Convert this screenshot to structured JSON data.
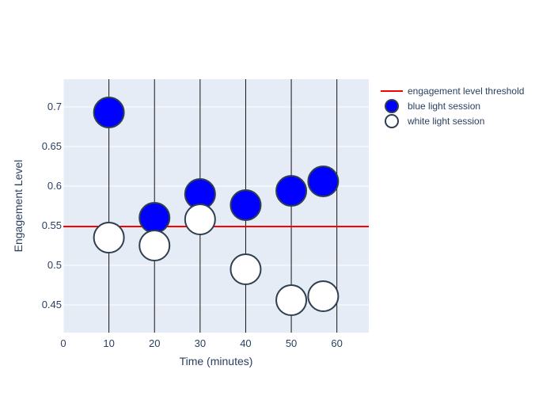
{
  "chart_data": {
    "type": "scatter",
    "xlabel": "Time (minutes)",
    "ylabel": "Engagement Level",
    "xlim": [
      0,
      67
    ],
    "ylim": [
      0.415,
      0.735
    ],
    "x_ticks": [
      0,
      10,
      20,
      30,
      40,
      50,
      60
    ],
    "y_ticks": [
      0.45,
      0.5,
      0.55,
      0.6,
      0.65,
      0.7
    ],
    "vertical_lines_x": [
      10,
      20,
      30,
      40,
      50,
      60
    ],
    "threshold": {
      "name": "engagement level threshold",
      "y": 0.549,
      "color": "#ff0000"
    },
    "series": [
      {
        "name": "blue light session",
        "color": "#0000ff",
        "points": [
          {
            "x": 10,
            "y": 0.693
          },
          {
            "x": 20,
            "y": 0.56
          },
          {
            "x": 30,
            "y": 0.59
          },
          {
            "x": 40,
            "y": 0.576
          },
          {
            "x": 50,
            "y": 0.594
          },
          {
            "x": 57,
            "y": 0.606
          }
        ]
      },
      {
        "name": "white light session",
        "color": "#ffffff",
        "points": [
          {
            "x": 10,
            "y": 0.535
          },
          {
            "x": 20,
            "y": 0.525
          },
          {
            "x": 30,
            "y": 0.558
          },
          {
            "x": 40,
            "y": 0.495
          },
          {
            "x": 50,
            "y": 0.456
          },
          {
            "x": 57,
            "y": 0.461
          }
        ]
      }
    ],
    "marker_outline_color": "#2f3f4f",
    "plot_background": "#e5ecf6",
    "grid": true,
    "legend_position": "top-right"
  }
}
